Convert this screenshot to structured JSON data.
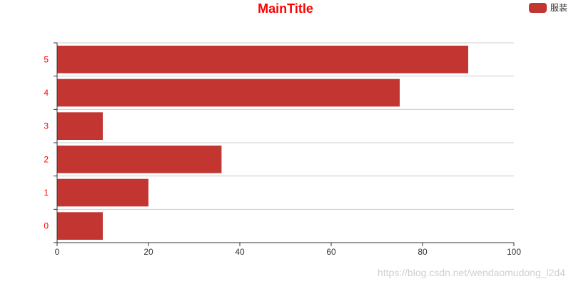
{
  "chart_data": {
    "type": "bar",
    "orientation": "horizontal",
    "title": "MainTitle",
    "categories": [
      "0",
      "1",
      "2",
      "3",
      "4",
      "5"
    ],
    "series": [
      {
        "name": "服装",
        "values": [
          10,
          20,
          36,
          10,
          75,
          90
        ],
        "color": "#c23531"
      }
    ],
    "xlabel": "",
    "ylabel": "",
    "xlim": [
      0,
      100
    ],
    "x_ticks": [
      0,
      20,
      40,
      60,
      80,
      100
    ],
    "grid": true,
    "legend_position": "top-right",
    "title_color": "#ff0000",
    "category_label_color": "#ff0000",
    "value_label_color": "#333333"
  },
  "watermark": {
    "text": "https://blog.csdn.net/wendaomudong_l2d4"
  }
}
